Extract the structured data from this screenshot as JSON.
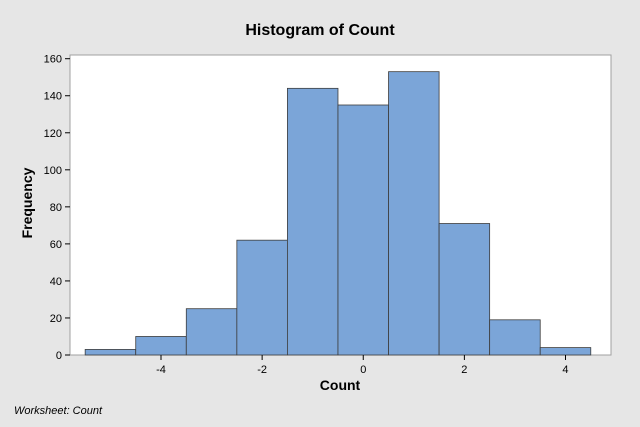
{
  "chart_data": {
    "type": "bar",
    "title": "Histogram of Count",
    "xlabel": "Count",
    "ylabel": "Frequency",
    "bin_width": 1,
    "bins": [
      {
        "center": -5,
        "frequency": 3
      },
      {
        "center": -4,
        "frequency": 10
      },
      {
        "center": -3,
        "frequency": 25
      },
      {
        "center": -2,
        "frequency": 62
      },
      {
        "center": -1,
        "frequency": 144
      },
      {
        "center": 0,
        "frequency": 135
      },
      {
        "center": 1,
        "frequency": 153
      },
      {
        "center": 2,
        "frequency": 71
      },
      {
        "center": 3,
        "frequency": 19
      },
      {
        "center": 4,
        "frequency": 4
      }
    ],
    "xlim": [
      -5.8,
      4.9
    ],
    "ylim": [
      0,
      162
    ],
    "xticks": [
      -4,
      -2,
      0,
      2,
      4
    ],
    "yticks": [
      0,
      20,
      40,
      60,
      80,
      100,
      120,
      140,
      160
    ],
    "grid": false,
    "legend": "none",
    "colors": {
      "bar_fill": "#7ba5d8",
      "bar_stroke": "#3c3c3c",
      "plot_bg": "#ffffff",
      "outer_bg": "#e6e6e6"
    }
  },
  "footer": "Worksheet: Count"
}
